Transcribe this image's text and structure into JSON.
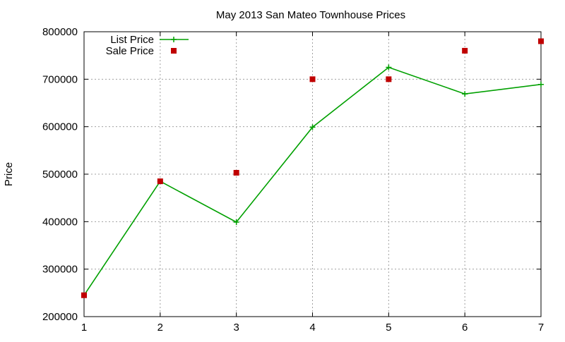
{
  "chart_data": {
    "type": "line",
    "title": "May 2013 San Mateo Townhouse Prices",
    "xlabel": "",
    "ylabel": "Price",
    "x": [
      1,
      2,
      3,
      4,
      5,
      6,
      7
    ],
    "xlim": [
      1,
      7
    ],
    "ylim": [
      200000,
      800000
    ],
    "xticks": [
      "1",
      "2",
      "3",
      "4",
      "5",
      "6",
      "7"
    ],
    "yticks": [
      "200000",
      "300000",
      "400000",
      "500000",
      "600000",
      "700000",
      "800000"
    ],
    "ytick_values": [
      200000,
      300000,
      400000,
      500000,
      600000,
      700000,
      800000
    ],
    "grid": true,
    "legend_position": "top-left",
    "series": [
      {
        "name": "List Price",
        "style": "lines+crosses",
        "color": "#00a000",
        "values": [
          245000,
          485000,
          399000,
          599000,
          725000,
          669000,
          689000
        ]
      },
      {
        "name": "Sale Price",
        "style": "squares",
        "color": "#c00000",
        "values": [
          245000,
          485000,
          503000,
          700000,
          700000,
          760000,
          780000
        ]
      }
    ]
  }
}
